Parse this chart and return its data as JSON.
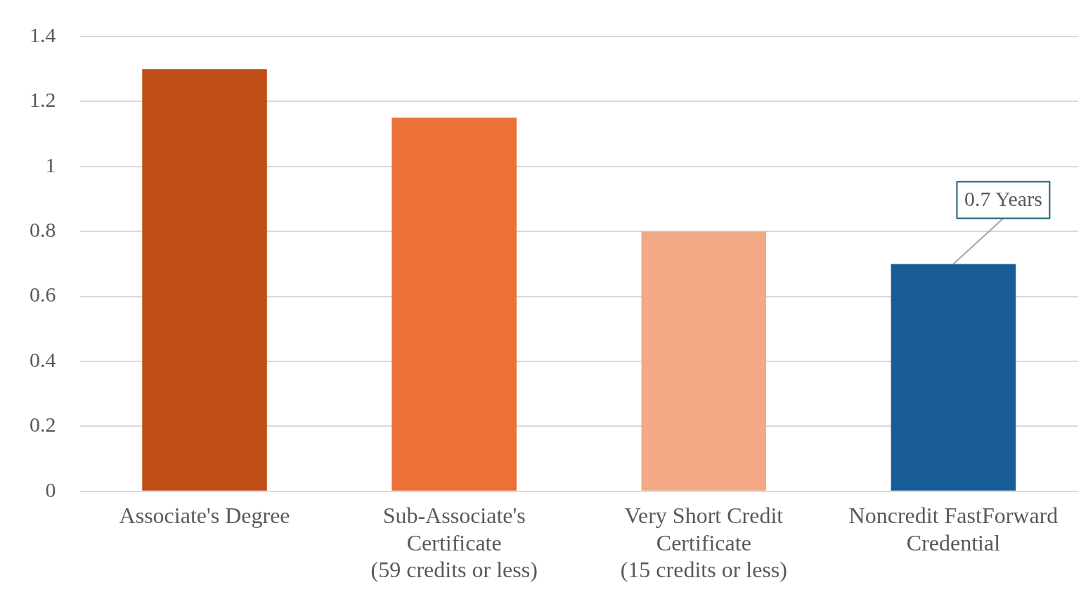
{
  "chart_data": {
    "type": "bar",
    "categories": [
      "Associate's Degree",
      "Sub-Associate's\nCertificate\n(59 credits or less)",
      "Very Short Credit\nCertificate\n(15 credits or less)",
      "Noncredit FastForward\nCredential"
    ],
    "values": [
      1.3,
      1.15,
      0.8,
      0.7
    ],
    "colors": [
      "#c04f17",
      "#eb7139",
      "#f3a886",
      "#185c97"
    ],
    "ylim": [
      0,
      1.4
    ],
    "yticks": [
      0,
      0.2,
      0.4,
      0.6,
      0.8,
      1,
      1.2,
      1.4
    ],
    "grid": "y",
    "legend": false,
    "annotations": [
      {
        "text": "0.7 Years",
        "x": "Noncredit FastForward\nCredential",
        "y": 0.7
      }
    ]
  }
}
